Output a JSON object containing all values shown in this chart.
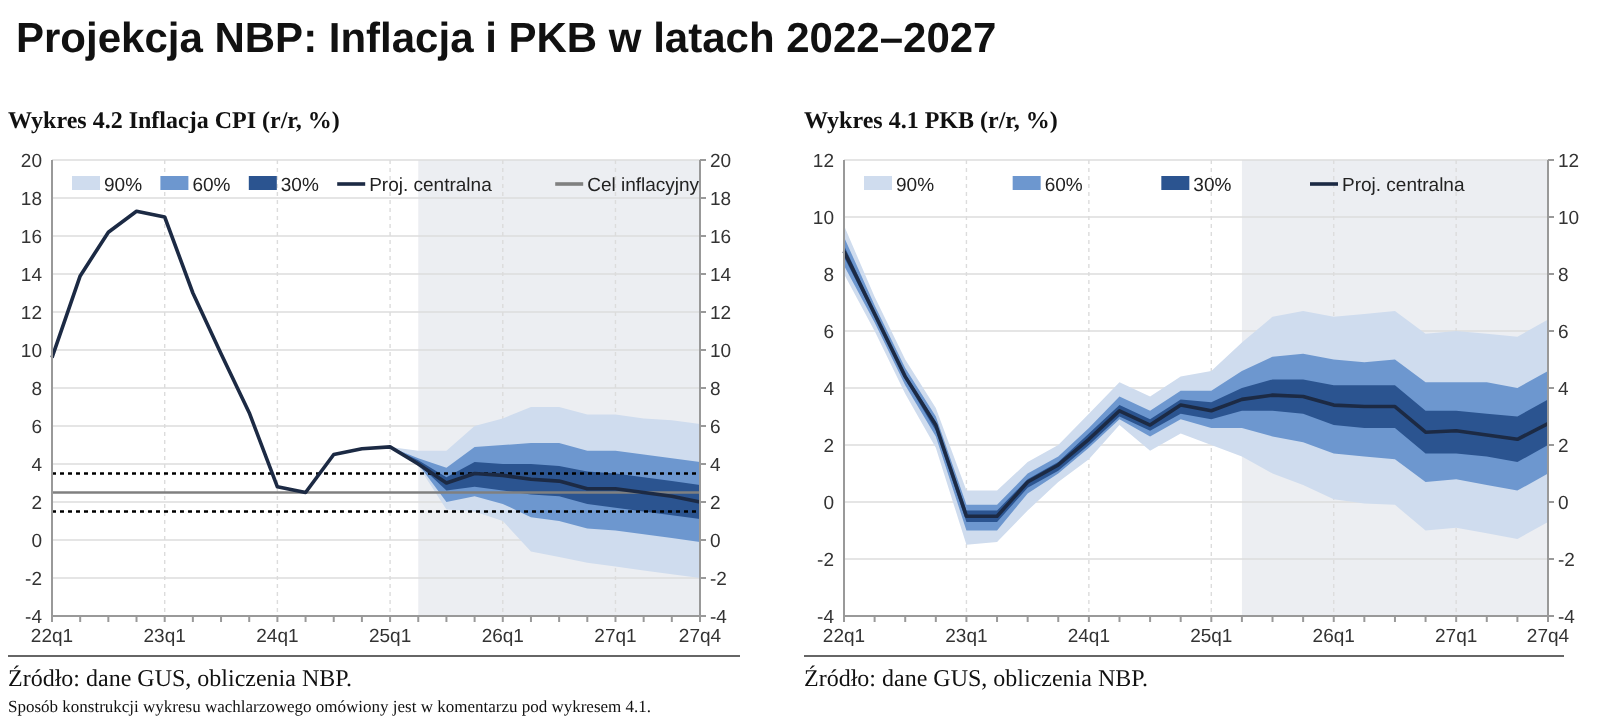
{
  "chart_data": [
    {
      "type": "line",
      "title": "Projekcja NBP: Inflacja i PKB w latach 2022–2027",
      "subtitle": "Wykres 4.2 Inflacja CPI (r/r, %)",
      "categories": [
        "22q1",
        null,
        null,
        null,
        "23q1",
        null,
        null,
        null,
        "24q1",
        null,
        null,
        null,
        "25q1",
        null,
        null,
        null,
        "26q1",
        null,
        null,
        null,
        "27q1",
        null,
        null,
        "27q4"
      ],
      "ylim": [
        -4,
        20
      ],
      "yticks": [
        -4,
        -2,
        0,
        2,
        4,
        6,
        8,
        10,
        12,
        14,
        16,
        18,
        20
      ],
      "y2lim": [
        -4,
        20
      ],
      "y2ticks": [
        -4,
        -2,
        0,
        2,
        4,
        6,
        8,
        10,
        12,
        14,
        16,
        18,
        20
      ],
      "grid": true,
      "legend": "top",
      "series": [
        {
          "name": "90%",
          "type": "line",
          "color": "#cfdcee",
          "values": [
            null,
            null,
            null,
            null,
            null,
            null,
            null,
            null,
            null,
            null,
            null,
            null,
            null,
            null,
            null,
            null,
            null,
            null,
            null,
            null,
            null,
            null,
            null,
            null
          ],
          "upper": [
            null,
            null,
            null,
            null,
            null,
            null,
            null,
            null,
            null,
            null,
            null,
            null,
            4.9,
            4.7,
            4.7,
            6.0,
            6.4,
            7.0,
            7.0,
            6.6,
            6.6,
            6.4,
            6.3,
            6.1
          ],
          "lower": [
            null,
            null,
            null,
            null,
            null,
            null,
            null,
            null,
            null,
            null,
            null,
            null,
            4.9,
            3.9,
            1.6,
            1.5,
            1.0,
            -0.6,
            -0.9,
            -1.2,
            -1.4,
            -1.6,
            -1.8,
            -2.0
          ]
        },
        {
          "name": "60%",
          "type": "line",
          "color": "#6d97cf",
          "values": [
            null,
            null,
            null,
            null,
            null,
            null,
            null,
            null,
            null,
            null,
            null,
            null,
            null,
            null,
            null,
            null,
            null,
            null,
            null,
            null,
            null,
            null,
            null,
            null
          ],
          "upper": [
            null,
            null,
            null,
            null,
            null,
            null,
            null,
            null,
            null,
            null,
            null,
            null,
            4.9,
            4.3,
            3.8,
            4.9,
            5.0,
            5.1,
            5.1,
            4.7,
            4.7,
            4.5,
            4.3,
            4.1
          ],
          "lower": [
            null,
            null,
            null,
            null,
            null,
            null,
            null,
            null,
            null,
            null,
            null,
            null,
            4.9,
            4.0,
            2.0,
            2.3,
            1.9,
            1.2,
            1.0,
            0.6,
            0.5,
            0.3,
            0.1,
            -0.1
          ]
        },
        {
          "name": "30%",
          "type": "line",
          "color": "#2b5490",
          "values": [
            null,
            null,
            null,
            null,
            null,
            null,
            null,
            null,
            null,
            null,
            null,
            null,
            null,
            null,
            null,
            null,
            null,
            null,
            null,
            null,
            null,
            null,
            null,
            null
          ],
          "upper": [
            null,
            null,
            null,
            null,
            null,
            null,
            null,
            null,
            null,
            null,
            null,
            null,
            4.9,
            4.2,
            3.3,
            4.1,
            4.0,
            4.0,
            3.9,
            3.6,
            3.5,
            3.3,
            3.1,
            2.9
          ],
          "lower": [
            null,
            null,
            null,
            null,
            null,
            null,
            null,
            null,
            null,
            null,
            null,
            null,
            4.9,
            4.0,
            2.6,
            2.8,
            2.6,
            2.4,
            2.3,
            1.9,
            1.7,
            1.5,
            1.3,
            1.1
          ]
        },
        {
          "name": "Proj. centralna",
          "type": "line",
          "color": "#1c2a44",
          "values": [
            9.6,
            13.9,
            16.2,
            17.3,
            17.0,
            13.0,
            9.8,
            6.7,
            2.8,
            2.5,
            4.5,
            4.8,
            4.9,
            4.0,
            3.0,
            3.5,
            3.4,
            3.2,
            3.1,
            2.7,
            2.7,
            2.5,
            2.3,
            2.0
          ]
        }
      ],
      "ref_lines": [
        {
          "axis": "y",
          "value": 2.5,
          "label": "Cel inflacyjny",
          "color": "#808080",
          "line_style": "solid"
        },
        {
          "axis": "y",
          "value": 3.5,
          "color": "#000000",
          "line_style": "dotted"
        },
        {
          "axis": "y",
          "value": 1.5,
          "color": "#000000",
          "line_style": "dotted"
        }
      ],
      "annotations": [
        "Źródło: dane GUS, obliczenia NBP.",
        "Sposób konstrukcji wykresu wachlarzowego omówiony jest w komentarzu pod wykresem 4.1."
      ]
    },
    {
      "type": "line",
      "subtitle": "Wykres 4.1 PKB (r/r, %)",
      "categories": [
        "22q1",
        null,
        null,
        null,
        "23q1",
        null,
        null,
        null,
        "24q1",
        null,
        null,
        null,
        "25q1",
        null,
        null,
        null,
        "26q1",
        null,
        null,
        null,
        "27q1",
        null,
        null,
        "27q4"
      ],
      "ylim": [
        -4,
        12
      ],
      "yticks": [
        -4,
        -2,
        0,
        2,
        4,
        6,
        8,
        10,
        12
      ],
      "y2lim": [
        -4,
        12
      ],
      "y2ticks": [
        -4,
        -2,
        0,
        2,
        4,
        6,
        8,
        10,
        12
      ],
      "grid": true,
      "legend": "top",
      "series": [
        {
          "name": "90%",
          "type": "line",
          "color": "#cfdcee",
          "values": [
            null,
            null,
            null,
            null,
            null,
            null,
            null,
            null,
            null,
            null,
            null,
            null,
            null,
            null,
            null,
            null,
            null,
            null,
            null,
            null,
            null,
            null,
            null,
            null
          ],
          "upper": [
            9.7,
            7.2,
            5.0,
            3.3,
            0.4,
            0.4,
            1.4,
            2.0,
            3.1,
            4.2,
            3.7,
            4.4,
            4.6,
            5.6,
            6.5,
            6.7,
            6.5,
            6.6,
            6.7,
            5.9,
            6.0,
            5.9,
            5.8,
            6.4
          ],
          "lower": [
            8.0,
            6.0,
            3.8,
            1.9,
            -1.5,
            -1.4,
            -0.3,
            0.7,
            1.5,
            2.7,
            1.8,
            2.4,
            2.0,
            1.6,
            1.0,
            0.6,
            0.1,
            -0.05,
            -0.1,
            -1.0,
            -0.9,
            -1.1,
            -1.3,
            -0.7
          ]
        },
        {
          "name": "60%",
          "type": "line",
          "color": "#6d97cf",
          "values": [
            null,
            null,
            null,
            null,
            null,
            null,
            null,
            null,
            null,
            null,
            null,
            null,
            null,
            null,
            null,
            null,
            null,
            null,
            null,
            null,
            null,
            null,
            null,
            null
          ],
          "upper": [
            9.3,
            6.9,
            4.7,
            3.0,
            -0.1,
            -0.1,
            1.0,
            1.6,
            2.6,
            3.7,
            3.2,
            3.9,
            3.9,
            4.6,
            5.1,
            5.2,
            5.0,
            4.9,
            5.0,
            4.2,
            4.2,
            4.2,
            4.0,
            4.6
          ],
          "lower": [
            8.3,
            6.3,
            4.1,
            2.3,
            -1.0,
            -1.0,
            0.3,
            1.0,
            1.9,
            2.9,
            2.3,
            2.9,
            2.6,
            2.6,
            2.3,
            2.1,
            1.7,
            1.6,
            1.5,
            0.7,
            0.8,
            0.6,
            0.4,
            1.0
          ]
        },
        {
          "name": "30%",
          "type": "line",
          "color": "#2b5490",
          "values": [
            null,
            null,
            null,
            null,
            null,
            null,
            null,
            null,
            null,
            null,
            null,
            null,
            null,
            null,
            null,
            null,
            null,
            null,
            null,
            null,
            null,
            null,
            null,
            null
          ],
          "upper": [
            9.0,
            6.7,
            4.5,
            2.8,
            -0.3,
            -0.3,
            0.8,
            1.4,
            2.4,
            3.4,
            2.9,
            3.6,
            3.5,
            4.0,
            4.3,
            4.3,
            4.1,
            4.1,
            4.1,
            3.2,
            3.2,
            3.1,
            3.0,
            3.6
          ],
          "lower": [
            8.6,
            6.5,
            4.3,
            2.5,
            -0.7,
            -0.7,
            0.5,
            1.1,
            2.0,
            3.0,
            2.5,
            3.1,
            2.9,
            3.2,
            3.2,
            3.1,
            2.7,
            2.6,
            2.6,
            1.7,
            1.7,
            1.6,
            1.4,
            2.0
          ]
        },
        {
          "name": "Proj. centralna",
          "type": "line",
          "color": "#1c2a44",
          "values": [
            8.8,
            6.6,
            4.4,
            2.7,
            -0.5,
            -0.5,
            0.7,
            1.3,
            2.2,
            3.2,
            2.7,
            3.4,
            3.2,
            3.6,
            3.75,
            3.7,
            3.4,
            3.35,
            3.35,
            2.45,
            2.5,
            2.35,
            2.2,
            2.75
          ]
        }
      ],
      "annotations": [
        "Źródło: dane GUS, obliczenia NBP."
      ]
    }
  ]
}
